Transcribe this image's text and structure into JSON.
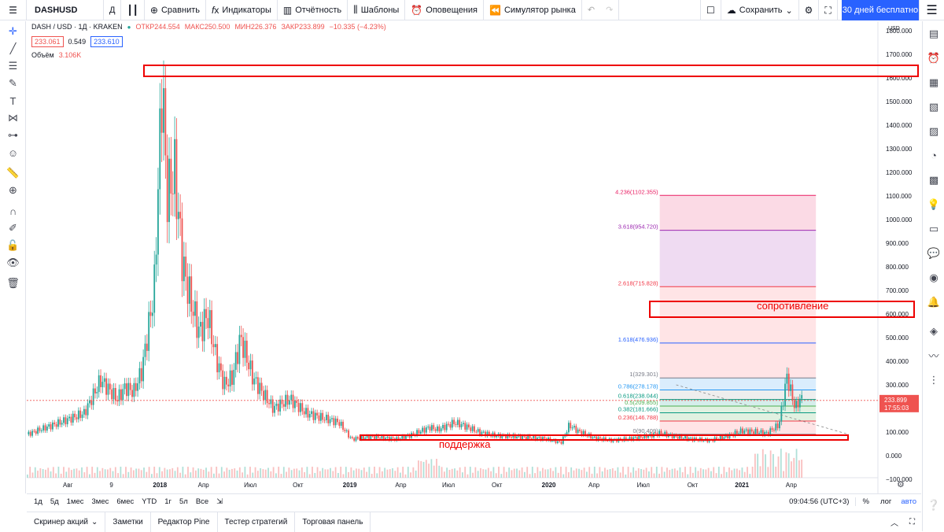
{
  "toolbar": {
    "symbol": "DASHUSD",
    "interval": "Д",
    "compare": "Сравнить",
    "indicators": "Индикаторы",
    "reports": "Отчётность",
    "templates": "Шаблоны",
    "alerts": "Оповещения",
    "replay": "Симулятор рынка",
    "save": "Сохранить",
    "promo": "30 дней бесплатно"
  },
  "legend": {
    "title": "DASH / USD · 1Д · KRAKEN",
    "open": "ОТКР244.554",
    "high": "МАКС250.500",
    "low": "МИН226.376",
    "close": "ЗАКР233.899",
    "change": "−10.335 (−4.23%)",
    "bid": "233.061",
    "spread": "0.549",
    "ask": "233.610",
    "volume_label": "Объём",
    "volume_value": "3.106K"
  },
  "chart_data": {
    "type": "candlestick",
    "symbol": "DASH / USD",
    "currency": "USD",
    "yticks": [
      "1800.000",
      "1700.000",
      "1600.000",
      "1500.000",
      "1400.000",
      "1300.000",
      "1200.000",
      "1100.000",
      "1000.000",
      "900.000",
      "800.000",
      "700.000",
      "600.000",
      "500.000",
      "400.000",
      "300.000",
      "200.000",
      "100.000",
      "0.000",
      "−100.000"
    ],
    "xticks": [
      "Авг",
      "9",
      "2018",
      "Апр",
      "Июл",
      "Окт",
      "2019",
      "Апр",
      "Июл",
      "Окт",
      "2020",
      "Апр",
      "Июл",
      "Окт",
      "2021",
      "Апр"
    ],
    "ylim": [
      -120,
      1800
    ],
    "price_path": [
      {
        "x": 0,
        "y": 90
      },
      {
        "x": 0.04,
        "y": 140
      },
      {
        "x": 0.07,
        "y": 180
      },
      {
        "x": 0.09,
        "y": 320
      },
      {
        "x": 0.11,
        "y": 240
      },
      {
        "x": 0.12,
        "y": 290
      },
      {
        "x": 0.13,
        "y": 270
      },
      {
        "x": 0.14,
        "y": 360
      },
      {
        "x": 0.155,
        "y": 700
      },
      {
        "x": 0.165,
        "y": 1620
      },
      {
        "x": 0.17,
        "y": 1100
      },
      {
        "x": 0.18,
        "y": 1200
      },
      {
        "x": 0.19,
        "y": 800
      },
      {
        "x": 0.2,
        "y": 650
      },
      {
        "x": 0.21,
        "y": 520
      },
      {
        "x": 0.22,
        "y": 600
      },
      {
        "x": 0.23,
        "y": 420
      },
      {
        "x": 0.24,
        "y": 300
      },
      {
        "x": 0.25,
        "y": 330
      },
      {
        "x": 0.26,
        "y": 500
      },
      {
        "x": 0.275,
        "y": 330
      },
      {
        "x": 0.29,
        "y": 250
      },
      {
        "x": 0.3,
        "y": 200
      },
      {
        "x": 0.32,
        "y": 240
      },
      {
        "x": 0.34,
        "y": 180
      },
      {
        "x": 0.36,
        "y": 160
      },
      {
        "x": 0.38,
        "y": 140
      },
      {
        "x": 0.395,
        "y": 70
      },
      {
        "x": 0.42,
        "y": 80
      },
      {
        "x": 0.45,
        "y": 70
      },
      {
        "x": 0.47,
        "y": 90
      },
      {
        "x": 0.49,
        "y": 120
      },
      {
        "x": 0.5,
        "y": 110
      },
      {
        "x": 0.52,
        "y": 140
      },
      {
        "x": 0.53,
        "y": 130
      },
      {
        "x": 0.55,
        "y": 100
      },
      {
        "x": 0.57,
        "y": 85
      },
      {
        "x": 0.6,
        "y": 80
      },
      {
        "x": 0.63,
        "y": 72
      },
      {
        "x": 0.65,
        "y": 55
      },
      {
        "x": 0.66,
        "y": 130
      },
      {
        "x": 0.67,
        "y": 105
      },
      {
        "x": 0.69,
        "y": 75
      },
      {
        "x": 0.71,
        "y": 65
      },
      {
        "x": 0.73,
        "y": 70
      },
      {
        "x": 0.75,
        "y": 80
      },
      {
        "x": 0.77,
        "y": 95
      },
      {
        "x": 0.79,
        "y": 80
      },
      {
        "x": 0.81,
        "y": 70
      },
      {
        "x": 0.83,
        "y": 65
      },
      {
        "x": 0.85,
        "y": 80
      },
      {
        "x": 0.87,
        "y": 105
      },
      {
        "x": 0.89,
        "y": 100
      },
      {
        "x": 0.9,
        "y": 95
      },
      {
        "x": 0.915,
        "y": 130
      },
      {
        "x": 0.925,
        "y": 340
      },
      {
        "x": 0.93,
        "y": 260
      },
      {
        "x": 0.935,
        "y": 200
      },
      {
        "x": 0.94,
        "y": 240
      },
      {
        "x": 0.945,
        "y": 234
      }
    ],
    "last_price": "233.899",
    "countdown": "17:55:03",
    "fib_levels": [
      {
        "label": "4.236(1102.355)",
        "value": 1102.355,
        "color": "#e91e63"
      },
      {
        "label": "3.618(954.720)",
        "value": 954.72,
        "color": "#9c27b0"
      },
      {
        "label": "2.618(715.828)",
        "value": 715.828,
        "color": "#f23645"
      },
      {
        "label": "1.618(476.936)",
        "value": 476.936,
        "color": "#2962ff"
      },
      {
        "label": "1(329.301)",
        "value": 329.301,
        "color": "#787b86"
      },
      {
        "label": "0.786(278.178)",
        "value": 278.178,
        "color": "#2196f3"
      },
      {
        "label": "0.618(238.044)",
        "value": 238.044,
        "color": "#089981"
      },
      {
        "label": "0.5(209.855)",
        "value": 209.855,
        "color": "#4caf50"
      },
      {
        "label": "0.382(181.666)",
        "value": 181.666,
        "color": "#089981"
      },
      {
        "label": "0.236(146.788)",
        "value": 146.788,
        "color": "#f23645"
      },
      {
        "label": "0(90.409)",
        "value": 90.409,
        "color": "#787b86"
      }
    ],
    "annotations": {
      "resistance": "сопротивление",
      "support": "поддержка"
    }
  },
  "bottom": {
    "timeframes": [
      "1д",
      "5д",
      "1мес",
      "3мес",
      "6мес",
      "YTD",
      "1г",
      "5л",
      "Все"
    ],
    "clock": "09:04:56 (UTC+3)",
    "percent": "%",
    "log": "лог",
    "auto": "авто"
  },
  "panels": [
    "Скринер акций",
    "Заметки",
    "Редактор Pine",
    "Тестер стратегий",
    "Торговая панель"
  ]
}
